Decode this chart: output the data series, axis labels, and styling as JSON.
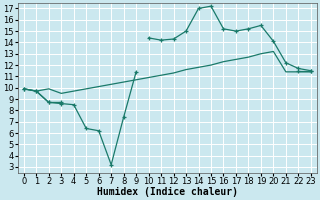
{
  "bg_color": "#cbe8ef",
  "grid_color": "#ffffff",
  "line_color": "#1a7a6a",
  "xlabel": "Humidex (Indice chaleur)",
  "xlim": [
    -0.5,
    23.5
  ],
  "ylim": [
    2.5,
    17.5
  ],
  "xticks": [
    0,
    1,
    2,
    3,
    4,
    5,
    6,
    7,
    8,
    9,
    10,
    11,
    12,
    13,
    14,
    15,
    16,
    17,
    18,
    19,
    20,
    21,
    22,
    23
  ],
  "yticks": [
    3,
    4,
    5,
    6,
    7,
    8,
    9,
    10,
    11,
    12,
    13,
    14,
    15,
    16,
    17
  ],
  "fontsize_label": 7,
  "fontsize_tick": 6,
  "line1_x": [
    0,
    1,
    2,
    3,
    10,
    11,
    12,
    13,
    14,
    15,
    16,
    17,
    18,
    19,
    20,
    21,
    22,
    23
  ],
  "line1_y": [
    9.9,
    9.7,
    8.7,
    8.7,
    14.4,
    14.2,
    14.3,
    15.0,
    17.0,
    17.2,
    15.2,
    15.0,
    15.2,
    15.5,
    14.1,
    12.2,
    11.7,
    11.5
  ],
  "line2_x": [
    0,
    1,
    2,
    3,
    4,
    5,
    6,
    7,
    8,
    9,
    22,
    23
  ],
  "line2_y": [
    9.9,
    9.7,
    8.7,
    8.6,
    8.5,
    6.4,
    6.2,
    3.2,
    7.4,
    11.4,
    11.5,
    11.5
  ],
  "line3_x": [
    0,
    1,
    2,
    3,
    4,
    5,
    6,
    7,
    8,
    9,
    10,
    11,
    12,
    13,
    14,
    15,
    16,
    17,
    18,
    19,
    20,
    21,
    22,
    23
  ],
  "line3_y": [
    9.9,
    9.7,
    9.9,
    9.5,
    9.7,
    9.9,
    10.1,
    10.3,
    10.5,
    10.7,
    10.9,
    11.1,
    11.3,
    11.6,
    11.8,
    12.0,
    12.3,
    12.5,
    12.7,
    13.0,
    13.2,
    11.4,
    11.4,
    11.4
  ]
}
